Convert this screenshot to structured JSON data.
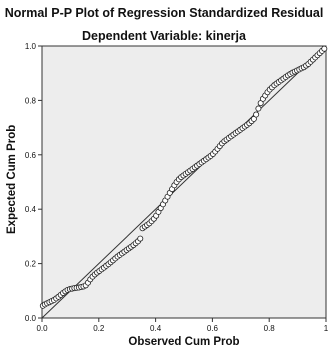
{
  "chart_data": {
    "type": "scatter",
    "title": "Normal P-P Plot of Regression Standardized Residual",
    "subtitle": "Dependent Variable: kinerja",
    "xlabel": "Observed Cum Prob",
    "ylabel": "Expected Cum Prob",
    "xlim": [
      0,
      1
    ],
    "ylim": [
      0,
      1
    ],
    "x_ticks": [
      "0.0",
      "0.2",
      "0.4",
      "0.6",
      "0.8",
      "1"
    ],
    "y_ticks": [
      "0.0",
      "0.2",
      "0.4",
      "0.6",
      "0.8",
      "1.0"
    ],
    "reference_line": [
      [
        0,
        0
      ],
      [
        1,
        1
      ]
    ],
    "points": [
      [
        0.003,
        0.045
      ],
      [
        0.01,
        0.05
      ],
      [
        0.018,
        0.054
      ],
      [
        0.026,
        0.058
      ],
      [
        0.034,
        0.062
      ],
      [
        0.042,
        0.066
      ],
      [
        0.05,
        0.072
      ],
      [
        0.058,
        0.078
      ],
      [
        0.066,
        0.085
      ],
      [
        0.074,
        0.092
      ],
      [
        0.082,
        0.098
      ],
      [
        0.09,
        0.103
      ],
      [
        0.098,
        0.106
      ],
      [
        0.106,
        0.108
      ],
      [
        0.114,
        0.11
      ],
      [
        0.122,
        0.111
      ],
      [
        0.13,
        0.112
      ],
      [
        0.138,
        0.114
      ],
      [
        0.146,
        0.116
      ],
      [
        0.154,
        0.12
      ],
      [
        0.162,
        0.13
      ],
      [
        0.17,
        0.142
      ],
      [
        0.178,
        0.152
      ],
      [
        0.186,
        0.16
      ],
      [
        0.194,
        0.167
      ],
      [
        0.202,
        0.173
      ],
      [
        0.21,
        0.179
      ],
      [
        0.218,
        0.185
      ],
      [
        0.226,
        0.192
      ],
      [
        0.234,
        0.198
      ],
      [
        0.242,
        0.205
      ],
      [
        0.25,
        0.212
      ],
      [
        0.258,
        0.219
      ],
      [
        0.266,
        0.226
      ],
      [
        0.274,
        0.232
      ],
      [
        0.282,
        0.238
      ],
      [
        0.29,
        0.244
      ],
      [
        0.298,
        0.25
      ],
      [
        0.306,
        0.256
      ],
      [
        0.314,
        0.262
      ],
      [
        0.322,
        0.268
      ],
      [
        0.33,
        0.275
      ],
      [
        0.338,
        0.282
      ],
      [
        0.346,
        0.292
      ],
      [
        0.354,
        0.33
      ],
      [
        0.362,
        0.336
      ],
      [
        0.37,
        0.342
      ],
      [
        0.378,
        0.348
      ],
      [
        0.386,
        0.356
      ],
      [
        0.394,
        0.365
      ],
      [
        0.402,
        0.376
      ],
      [
        0.41,
        0.39
      ],
      [
        0.418,
        0.404
      ],
      [
        0.426,
        0.418
      ],
      [
        0.434,
        0.432
      ],
      [
        0.442,
        0.446
      ],
      [
        0.45,
        0.46
      ],
      [
        0.458,
        0.474
      ],
      [
        0.466,
        0.488
      ],
      [
        0.474,
        0.5
      ],
      [
        0.482,
        0.51
      ],
      [
        0.49,
        0.518
      ],
      [
        0.498,
        0.524
      ],
      [
        0.506,
        0.53
      ],
      [
        0.514,
        0.536
      ],
      [
        0.522,
        0.542
      ],
      [
        0.53,
        0.548
      ],
      [
        0.538,
        0.554
      ],
      [
        0.546,
        0.56
      ],
      [
        0.554,
        0.566
      ],
      [
        0.562,
        0.572
      ],
      [
        0.57,
        0.578
      ],
      [
        0.578,
        0.584
      ],
      [
        0.586,
        0.59
      ],
      [
        0.594,
        0.596
      ],
      [
        0.602,
        0.603
      ],
      [
        0.61,
        0.612
      ],
      [
        0.618,
        0.622
      ],
      [
        0.626,
        0.632
      ],
      [
        0.634,
        0.642
      ],
      [
        0.642,
        0.65
      ],
      [
        0.65,
        0.656
      ],
      [
        0.658,
        0.662
      ],
      [
        0.666,
        0.668
      ],
      [
        0.674,
        0.674
      ],
      [
        0.682,
        0.68
      ],
      [
        0.69,
        0.686
      ],
      [
        0.698,
        0.692
      ],
      [
        0.706,
        0.698
      ],
      [
        0.714,
        0.704
      ],
      [
        0.722,
        0.71
      ],
      [
        0.73,
        0.716
      ],
      [
        0.738,
        0.724
      ],
      [
        0.746,
        0.732
      ],
      [
        0.754,
        0.748
      ],
      [
        0.762,
        0.77
      ],
      [
        0.77,
        0.79
      ],
      [
        0.778,
        0.806
      ],
      [
        0.786,
        0.818
      ],
      [
        0.794,
        0.83
      ],
      [
        0.802,
        0.84
      ],
      [
        0.81,
        0.848
      ],
      [
        0.818,
        0.856
      ],
      [
        0.826,
        0.862
      ],
      [
        0.834,
        0.868
      ],
      [
        0.842,
        0.874
      ],
      [
        0.85,
        0.88
      ],
      [
        0.858,
        0.886
      ],
      [
        0.866,
        0.892
      ],
      [
        0.874,
        0.897
      ],
      [
        0.882,
        0.902
      ],
      [
        0.89,
        0.906
      ],
      [
        0.898,
        0.91
      ],
      [
        0.906,
        0.914
      ],
      [
        0.914,
        0.918
      ],
      [
        0.922,
        0.922
      ],
      [
        0.93,
        0.928
      ],
      [
        0.938,
        0.934
      ],
      [
        0.946,
        0.942
      ],
      [
        0.954,
        0.95
      ],
      [
        0.962,
        0.958
      ],
      [
        0.97,
        0.966
      ],
      [
        0.978,
        0.974
      ],
      [
        0.986,
        0.982
      ],
      [
        0.994,
        0.99
      ]
    ],
    "plot_background": "#ededed",
    "marker_style": "open-circle",
    "grid": false,
    "legend": "none"
  }
}
